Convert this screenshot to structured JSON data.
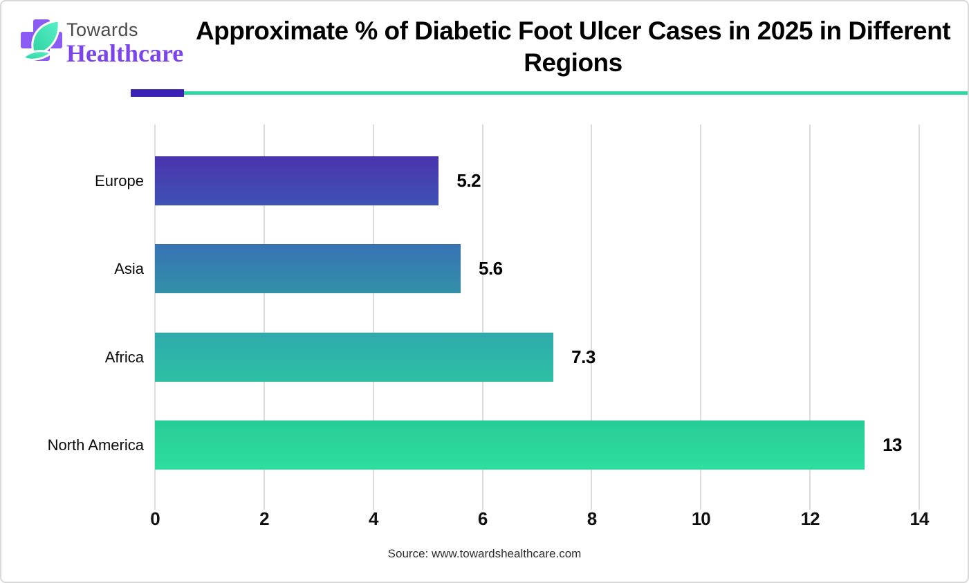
{
  "brand": {
    "name_line1": "Towards",
    "name_line2": "Healthcare"
  },
  "footer": {
    "source": "Source: www.towardshealthcare.com"
  },
  "colors": {
    "divider_purple": "#3C22B4",
    "divider_teal": "#2FD9A4",
    "logo_cross_purple": "#8B5CF3",
    "logo_leaf_teal_light": "#5BEFC6",
    "logo_leaf_teal_dark": "#2BD3A2",
    "logo_towards_gray": "#4A4A4A",
    "logo_healthcare_purple": "#7C45EC",
    "gridline": "#DCDCDC",
    "bar_gradients": [
      {
        "top": "#4A34AD",
        "bottom": "#3E52B4"
      },
      {
        "top": "#3773B6",
        "bottom": "#3390A8"
      },
      {
        "top": "#2FA9AC",
        "bottom": "#2DC0A4"
      },
      {
        "top": "#28CC96",
        "bottom": "#2CDF9F"
      }
    ]
  },
  "chart_data": {
    "type": "bar",
    "orientation": "horizontal",
    "title": "Approximate % of Diabetic Foot Ulcer Cases in 2025 in Different Regions",
    "categories": [
      "Europe",
      "Asia",
      "Africa",
      "North America"
    ],
    "values": [
      5.2,
      5.6,
      7.3,
      13
    ],
    "value_labels": [
      "5.2",
      "5.6",
      "7.3",
      "13"
    ],
    "xlim": [
      0,
      14
    ],
    "xticks": [
      0,
      2,
      4,
      6,
      8,
      10,
      12,
      14
    ],
    "grid": "vertical",
    "legend": "none",
    "xlabel": "",
    "ylabel": ""
  }
}
